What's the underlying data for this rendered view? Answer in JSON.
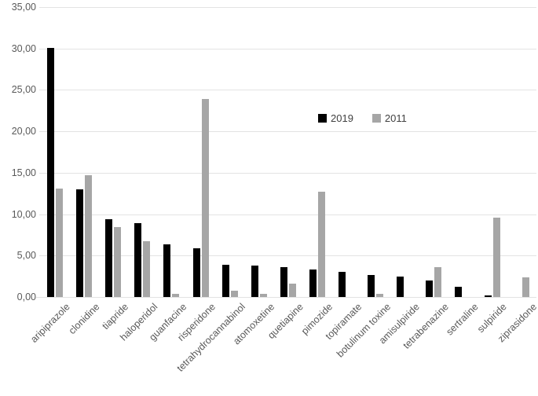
{
  "chart_data": {
    "type": "bar",
    "title": "",
    "xlabel": "",
    "ylabel": "",
    "categories": [
      "aripiprazole",
      "clonidine",
      "tiapride",
      "haloperidol",
      "guanfacine",
      "risperidone",
      "tetrahydrocannabinol",
      "atomoxetine",
      "quetiapine",
      "pimozide",
      "topiramate",
      "botulinum toxine",
      "amisulpiride",
      "tetrabenazine",
      "sertraline",
      "sulpiride",
      "ziprasidone"
    ],
    "series": [
      {
        "name": "2019",
        "color": "#000000",
        "values": [
          30.1,
          13.0,
          9.4,
          8.9,
          6.4,
          5.9,
          3.9,
          3.8,
          3.6,
          3.3,
          3.0,
          2.7,
          2.5,
          2.0,
          1.2,
          0.2,
          0
        ]
      },
      {
        "name": "2011",
        "color": "#a6a6a6",
        "values": [
          13.1,
          14.7,
          8.4,
          6.7,
          0.4,
          23.9,
          0.8,
          0.4,
          1.6,
          12.7,
          0,
          0.4,
          0,
          3.6,
          0,
          9.6,
          2.4
        ]
      }
    ],
    "y_axis": {
      "min": 0,
      "max": 35,
      "step": 5,
      "tick_labels": [
        "0,00",
        "5,00",
        "10,00",
        "15,00",
        "20,00",
        "25,00",
        "30,00",
        "35,00"
      ]
    },
    "legend": {
      "position": "inside-right",
      "entries": [
        "2019",
        "2011"
      ]
    },
    "grid": true,
    "colors": {
      "gridline": "#e3e3e3",
      "axis_text": "#595959",
      "background": "#ffffff"
    }
  }
}
